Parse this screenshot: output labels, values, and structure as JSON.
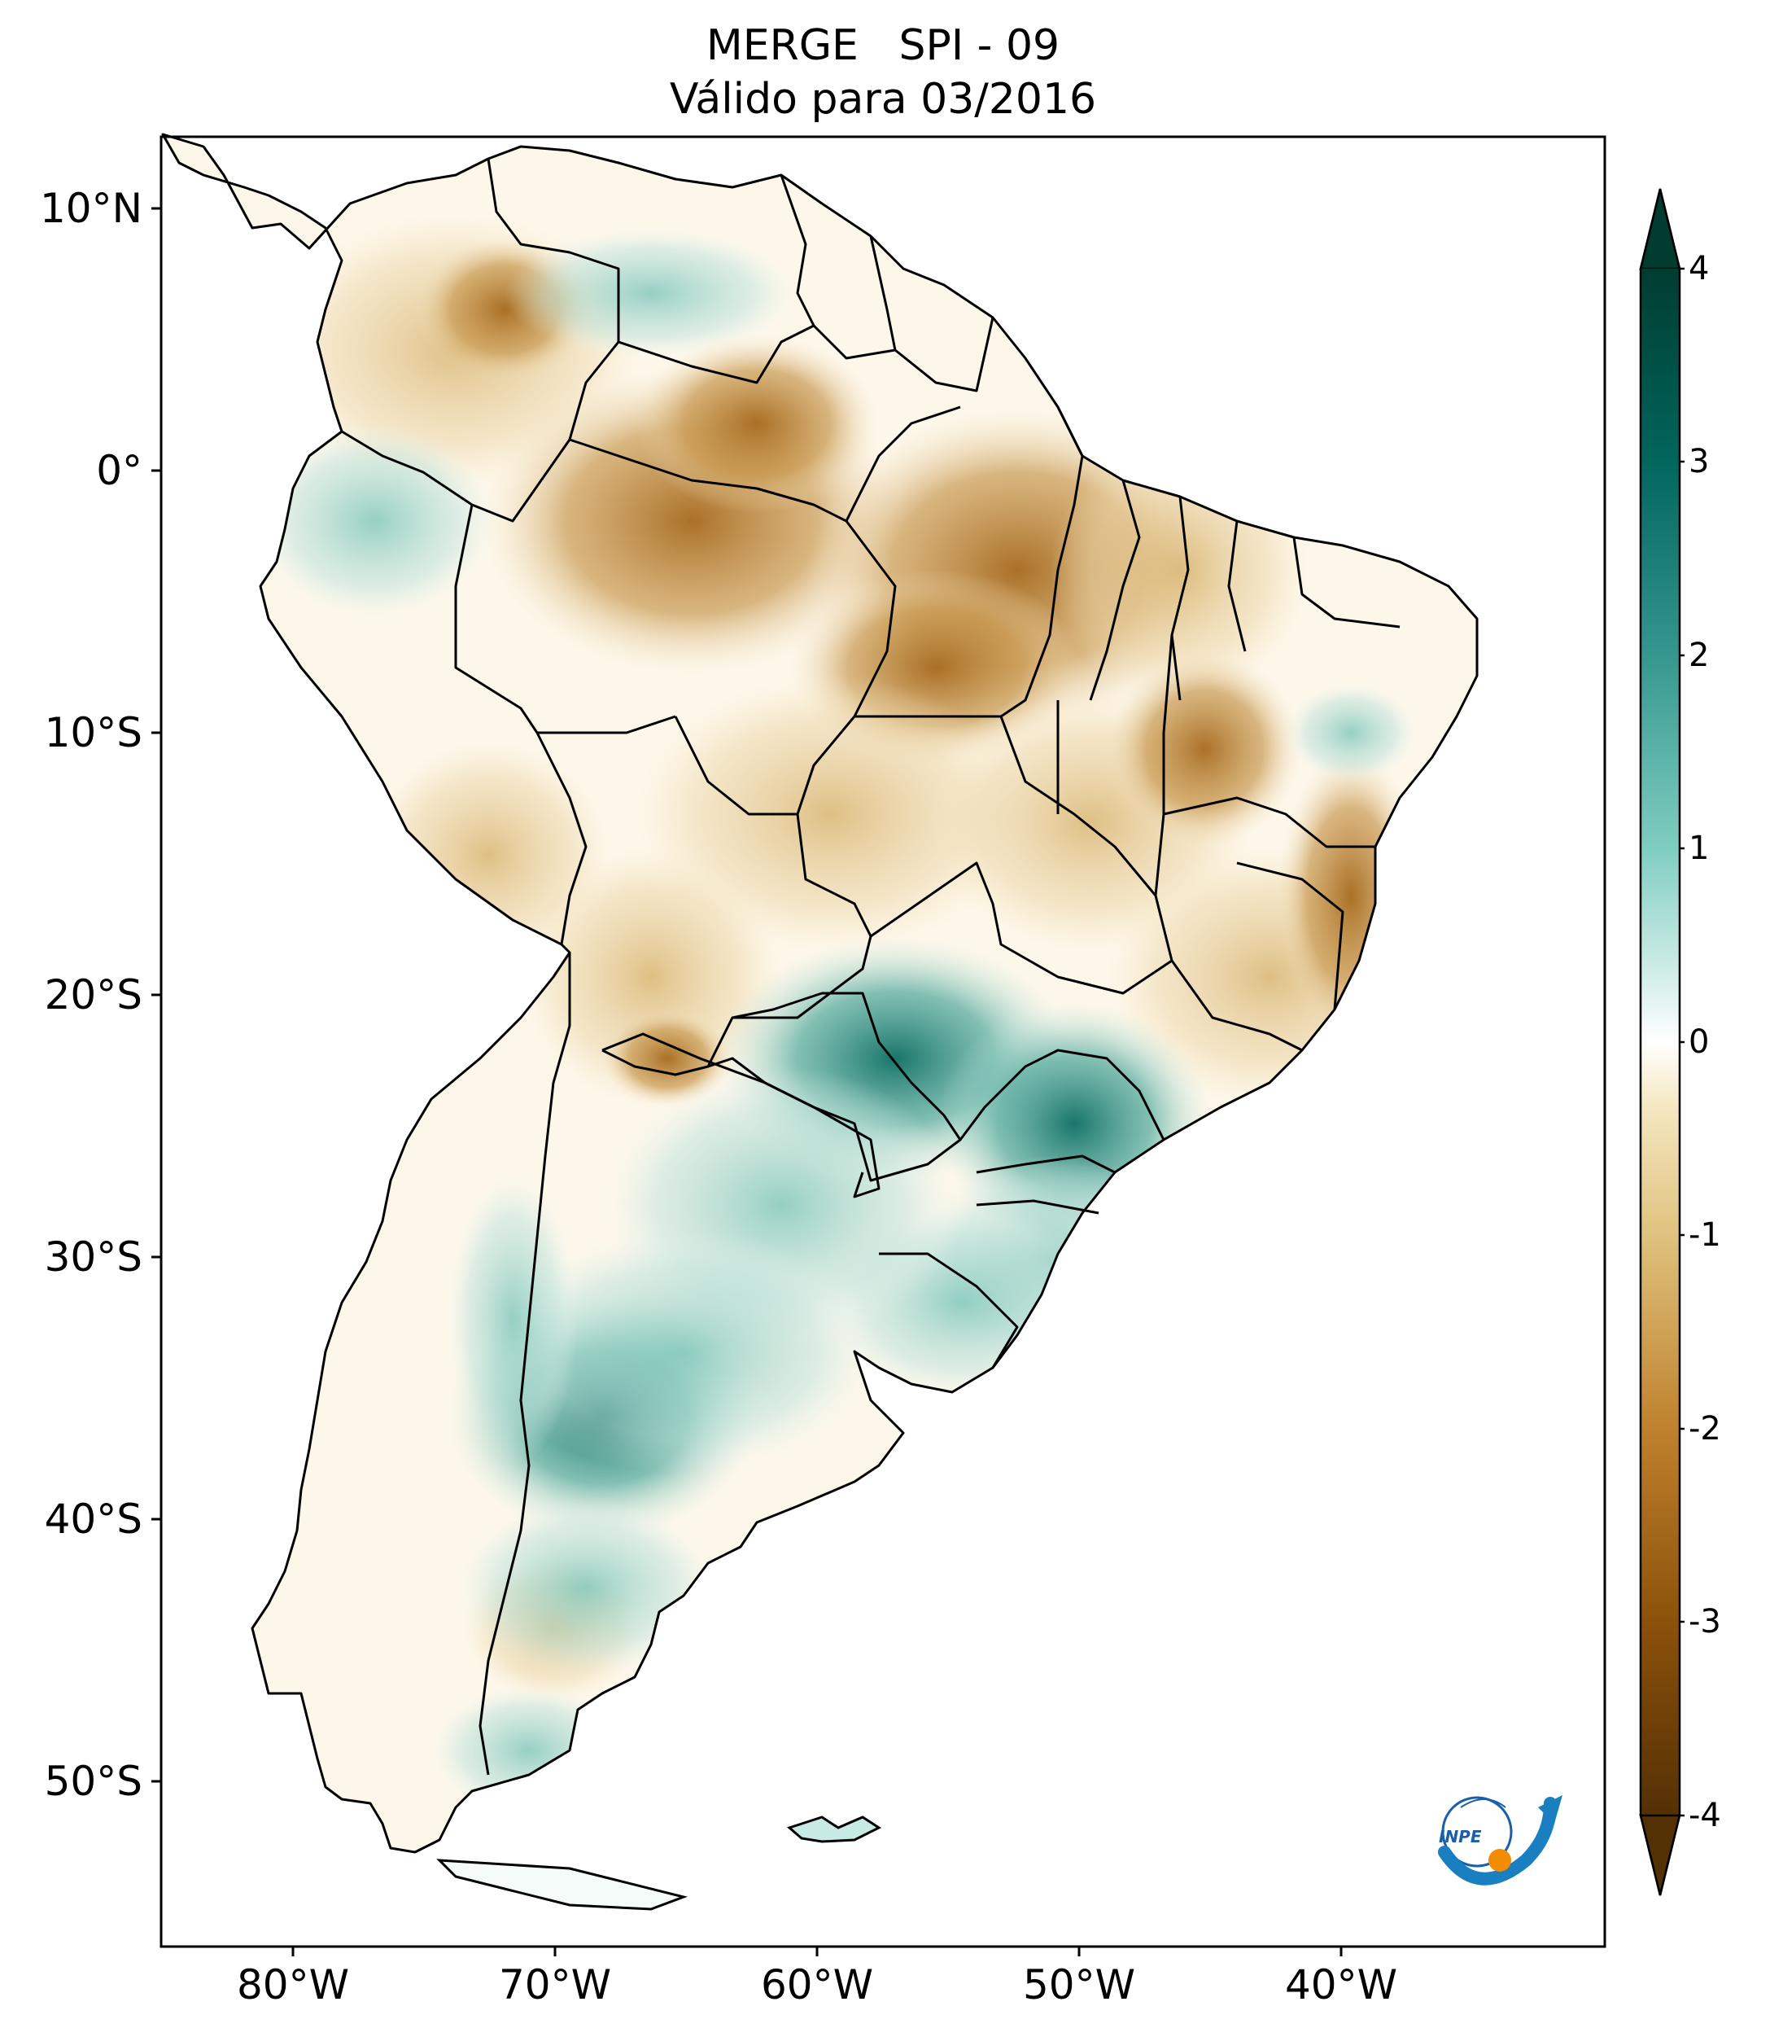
{
  "title": {
    "line1": "MERGE   SPI - 09",
    "line2": "Válido para 03/2016"
  },
  "map": {
    "region": "South America",
    "variable": "SPI - 09",
    "lon_range": [
      -85,
      -30
    ],
    "lat_range": [
      -56,
      13
    ],
    "lat_ticks": [
      "10°N",
      "0°",
      "10°S",
      "20°S",
      "30°S",
      "40°S",
      "50°S"
    ],
    "lon_ticks": [
      "80°W",
      "70°W",
      "60°W",
      "50°W",
      "40°W"
    ],
    "colors": {
      "dry_extreme": "#543005",
      "dry_strong": "#8c510a",
      "dry_moderate": "#d8b365",
      "dry_mild": "#f6e8c3",
      "neutral": "#ffffff",
      "wet_mild": "#c7eae5",
      "wet_moderate": "#5ab4ac",
      "wet_strong": "#01665e",
      "wet_extreme": "#003c30"
    }
  },
  "colorbar": {
    "ticks": [
      "4",
      "3",
      "2",
      "1",
      "0",
      "-1",
      "-2",
      "-3",
      "-4"
    ],
    "range": [
      -4,
      4
    ],
    "extend": "both"
  },
  "logo": {
    "text": "INPE"
  }
}
